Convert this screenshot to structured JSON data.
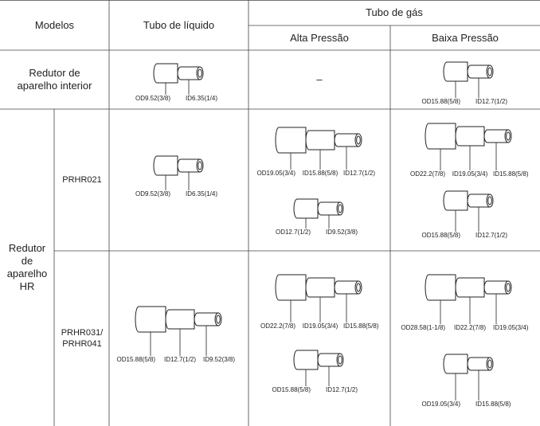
{
  "table": {
    "header": {
      "models": "Modelos",
      "liquid": "Tubo de líquido",
      "gas": "Tubo de gás",
      "high": "Alta Pressão",
      "low": "Baixa Pressão"
    },
    "group": "Redutor de aparelho HR",
    "rows": [
      {
        "model": "Redutor de aparelho interior",
        "liquid": [
          [
            "OD9.52(3/8)",
            "ID6.35(1/4)"
          ]
        ],
        "high": "–",
        "low": [
          [
            "OD15.88(5/8)",
            "ID12.7(1/2)"
          ]
        ]
      },
      {
        "model": "PRHR021",
        "liquid": [
          [
            "OD9.52(3/8)",
            "ID6.35(1/4)"
          ]
        ],
        "high": [
          [
            "OD19.05(3/4)",
            "ID15.88(5/8)",
            "ID12.7(1/2)"
          ],
          [
            "OD12.7(1/2)",
            "ID9.52(3/8)"
          ]
        ],
        "low": [
          [
            "OD22.2(7/8)",
            "ID19.05(3/4)",
            "ID15.88(5/8)"
          ],
          [
            "OD15.88(5/8)",
            "ID12.7(1/2)"
          ]
        ]
      },
      {
        "model": "PRHR031/ PRHR041",
        "liquid": [
          [
            "OD15.88(5/8)",
            "ID12.7(1/2)",
            "ID9.52(3/8)"
          ]
        ],
        "high": [
          [
            "OD22.2(7/8)",
            "ID19.05(3/4)",
            "ID15.88(5/8)"
          ],
          [
            "OD15.88(5/8)",
            "ID12.7(1/2)"
          ]
        ],
        "low": [
          [
            "OD28.58(1-1/8)",
            "ID22.2(7/8)",
            "ID19.05(3/4)"
          ],
          [
            "OD19.05(3/4)",
            "ID15.88(5/8)"
          ]
        ]
      }
    ]
  }
}
